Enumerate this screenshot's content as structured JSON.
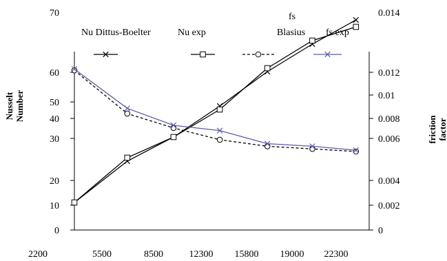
{
  "chart_data": {
    "type": "line",
    "title": "",
    "xlabel": "",
    "ylabel_left": [
      "Nusselt",
      "Number"
    ],
    "ylabel_right": [
      "friction",
      "factor"
    ],
    "xlim": [
      2200,
      24500
    ],
    "x_ticks": [
      "2200",
      "5500",
      "8500",
      "12300",
      "15800",
      "19000",
      "22300"
    ],
    "y_left_ticks": [
      "0",
      "10",
      "20",
      "30",
      "40",
      "50",
      "60",
      "70"
    ],
    "y_right_ticks": [
      "0",
      "0.002",
      "0.004",
      "0.006",
      "0.008",
      "0.01",
      "0.012",
      "0.014"
    ],
    "legend_position": "top",
    "series": [
      {
        "name": "Nu Dittus-Boelter",
        "axis": "left",
        "marker": "x",
        "color": "#000000",
        "dash": "solid",
        "x": [
          2200,
          6200,
          9700,
          13200,
          16800,
          20200,
          23500
        ],
        "y": [
          8,
          20,
          27,
          36,
          46,
          54,
          61
        ]
      },
      {
        "name": "Nu exp",
        "axis": "left",
        "marker": "square",
        "color": "#000000",
        "dash": "solid",
        "x": [
          2200,
          6200,
          9700,
          13200,
          16800,
          20200,
          23500
        ],
        "y": [
          8,
          21,
          27,
          35,
          47,
          55,
          59
        ]
      },
      {
        "name_lines": [
          "fs",
          "Blasius"
        ],
        "axis": "right",
        "marker": "circle",
        "color": "#000000",
        "dash": "dashed",
        "x": [
          2200,
          6200,
          9700,
          13200,
          16800,
          20200,
          23500
        ],
        "y": [
          0.0122,
          0.0089,
          0.0078,
          0.0069,
          0.0064,
          0.0062,
          0.006
        ]
      },
      {
        "name": "fs exp",
        "axis": "right",
        "marker": "x",
        "color": "#5b5ba6",
        "dash": "solid",
        "x": [
          2200,
          6200,
          9700,
          13200,
          16800,
          20200,
          23500
        ],
        "y": [
          0.0123,
          0.0093,
          0.008,
          0.0076,
          0.0066,
          0.0064,
          0.0061
        ]
      }
    ]
  }
}
